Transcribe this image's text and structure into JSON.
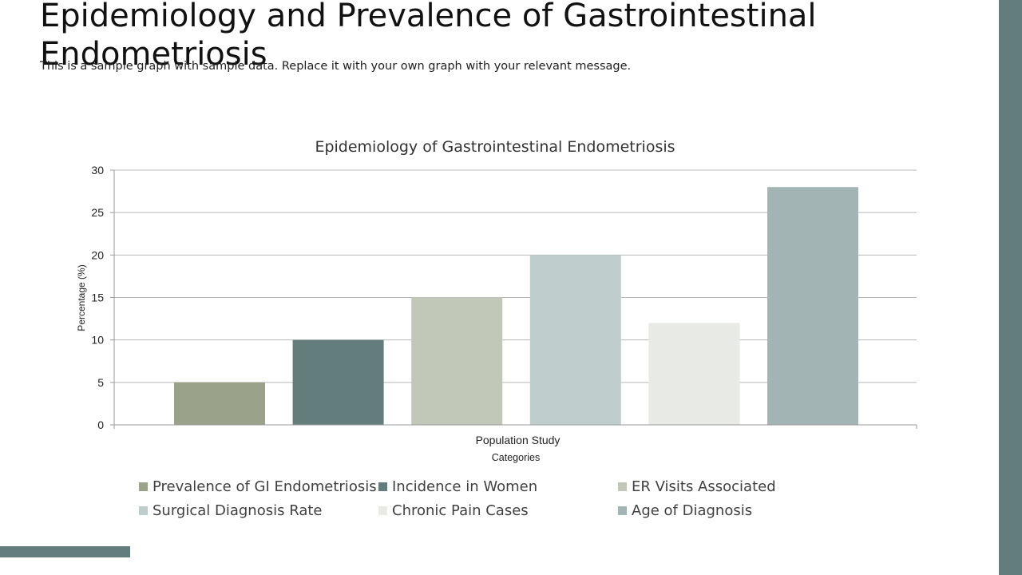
{
  "slide": {
    "title": "Epidemiology and Prevalence of Gastrointestinal Endometriosis",
    "subtitle": "This is a sample graph with sample data. Replace it with your own graph with your relevant message."
  },
  "colors": {
    "accent": "#637C7C",
    "gridline": "#b8b8b8",
    "axis": "#9a9a9a"
  },
  "chart_data": {
    "type": "bar",
    "title": "Epidemiology of Gastrointestinal Endometriosis",
    "xlabel": "Categories",
    "ylabel": "Percentage (%)",
    "categories": [
      "Population Study"
    ],
    "ylim": [
      0,
      30
    ],
    "yticks": [
      0,
      5,
      10,
      15,
      20,
      25,
      30
    ],
    "grid": true,
    "legend_position": "bottom",
    "series": [
      {
        "name": "Prevalence of GI Endometriosis",
        "values": [
          5
        ],
        "color": "#9aa38a"
      },
      {
        "name": "Incidence in Women",
        "values": [
          10
        ],
        "color": "#637C7C"
      },
      {
        "name": "ER Visits Associated",
        "values": [
          15
        ],
        "color": "#c1c8b8"
      },
      {
        "name": "Surgical Diagnosis Rate",
        "values": [
          20
        ],
        "color": "#bfcdcd"
      },
      {
        "name": "Chronic Pain Cases",
        "values": [
          12
        ],
        "color": "#e8eae6"
      },
      {
        "name": "Age of Diagnosis",
        "values": [
          28
        ],
        "color": "#a2b4b4"
      }
    ]
  }
}
